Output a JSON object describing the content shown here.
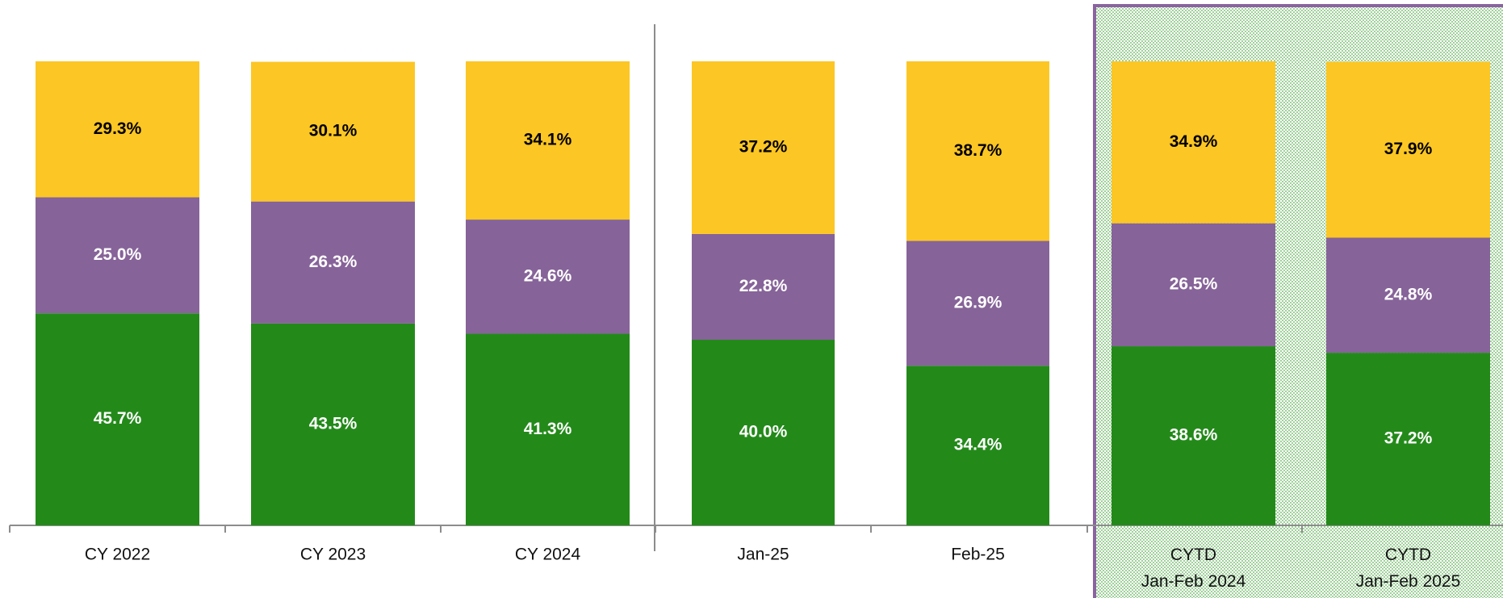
{
  "chart_data": {
    "type": "stacked_bar",
    "categories": [
      "CY 2022",
      "CY 2023",
      "CY 2024",
      "Jan-25",
      "Feb-25",
      "CYTD\nJan-Feb 2024",
      "CYTD\nJan-Feb 2025"
    ],
    "ylim": [
      0,
      100
    ],
    "series": [
      {
        "color": "#238a1a",
        "label_color": "#ffffff",
        "values": [
          45.7,
          43.5,
          41.3,
          40.0,
          34.4,
          38.6,
          37.2
        ],
        "value_labels": [
          "45.7%",
          "43.5%",
          "41.3%",
          "40.0%",
          "34.4%",
          "38.6%",
          "37.2%"
        ]
      },
      {
        "color": "#866399",
        "label_color": "#ffffff",
        "values": [
          25.0,
          26.3,
          24.6,
          22.8,
          26.9,
          26.5,
          24.8
        ],
        "value_labels": [
          "25.0%",
          "26.3%",
          "24.6%",
          "22.8%",
          "26.9%",
          "26.5%",
          "24.8%"
        ]
      },
      {
        "color": "#fcc624",
        "label_color": "#000000",
        "values": [
          29.3,
          30.1,
          34.1,
          37.2,
          38.7,
          34.9,
          37.9
        ],
        "value_labels": [
          "29.3%",
          "30.1%",
          "34.1%",
          "37.2%",
          "38.7%",
          "34.9%",
          "37.9%"
        ]
      }
    ]
  }
}
